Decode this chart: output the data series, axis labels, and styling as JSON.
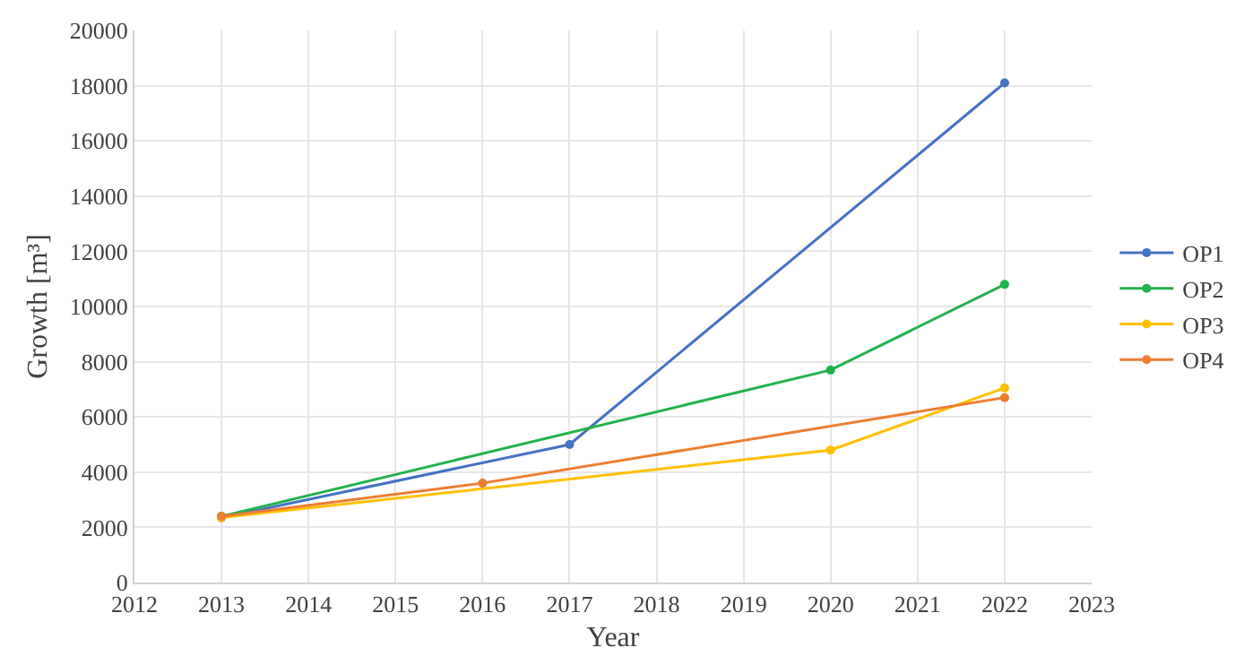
{
  "chart_data": {
    "type": "line",
    "xlabel": "Year",
    "ylabel": "Growth [m³]",
    "xlim": [
      2012,
      2023
    ],
    "xticks": [
      2012,
      2013,
      2014,
      2015,
      2016,
      2017,
      2018,
      2019,
      2020,
      2021,
      2022,
      2023
    ],
    "ylim": [
      0,
      20000
    ],
    "yticks": [
      0,
      2000,
      4000,
      6000,
      8000,
      10000,
      12000,
      14000,
      16000,
      18000,
      20000
    ],
    "grid": true,
    "legend": "right",
    "marker": "circle",
    "line_style": "solid",
    "series": [
      {
        "name": "OP1",
        "color": "#4472c4",
        "x": [
          2013,
          2017,
          2022
        ],
        "values": [
          2350,
          5000,
          18100
        ]
      },
      {
        "name": "OP2",
        "color": "#22b14c",
        "x": [
          2013,
          2020,
          2022
        ],
        "values": [
          2400,
          7700,
          10800
        ]
      },
      {
        "name": "OP3",
        "color": "#ffc000",
        "x": [
          2013,
          2020,
          2022
        ],
        "values": [
          2350,
          4800,
          7050
        ]
      },
      {
        "name": "OP4",
        "color": "#ed7d31",
        "x": [
          2013,
          2016,
          2022
        ],
        "values": [
          2400,
          3600,
          6700
        ]
      }
    ]
  }
}
